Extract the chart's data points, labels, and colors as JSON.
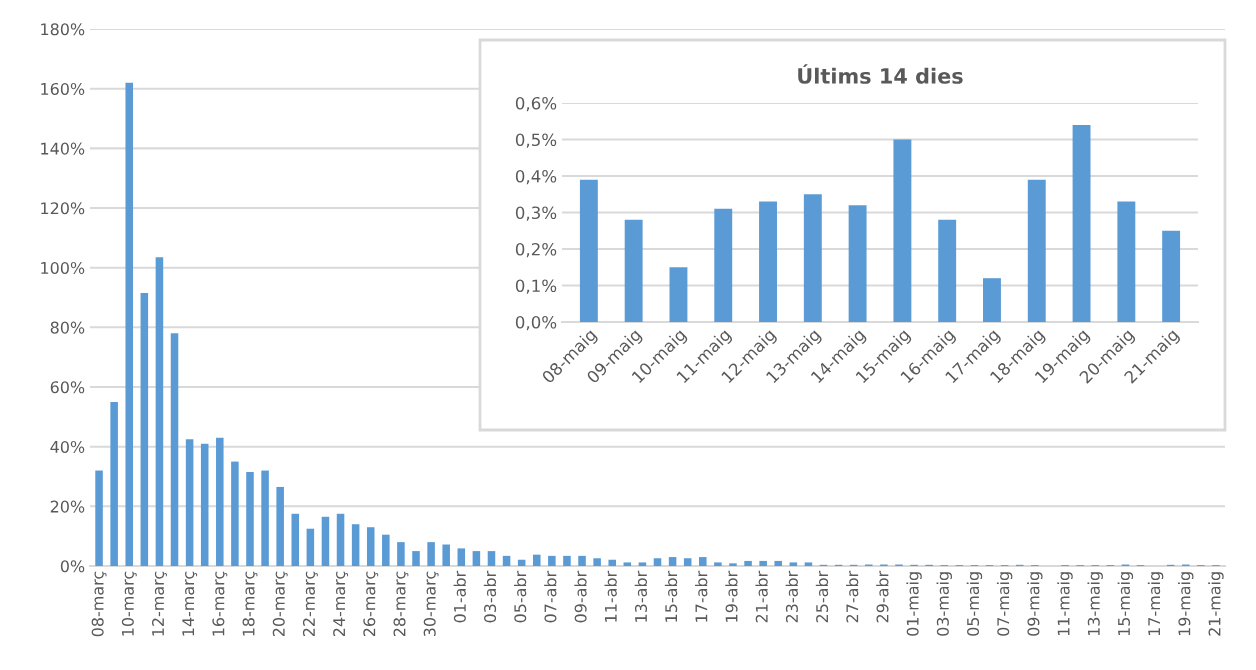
{
  "chart_data": [
    {
      "type": "bar",
      "color": "#5b9bd5",
      "grid": "y",
      "legend": false,
      "categories": [
        "08-març",
        null,
        "10-març",
        null,
        "12-març",
        null,
        "14-març",
        null,
        "16-març",
        null,
        "18-març",
        null,
        "20-març",
        null,
        "22-març",
        null,
        "24-març",
        null,
        "26-març",
        null,
        "28-març",
        null,
        "30-març",
        null,
        "01-abr",
        null,
        "03-abr",
        null,
        "05-abr",
        null,
        "07-abr",
        null,
        "09-abr",
        null,
        "11-abr",
        null,
        "13-abr",
        null,
        "15-abr",
        null,
        "17-abr",
        null,
        "19-abr",
        null,
        "21-abr",
        null,
        "23-abr",
        null,
        "25-abr",
        null,
        "27-abr",
        null,
        "29-abr",
        null,
        "01-maig",
        null,
        "03-maig",
        null,
        "05-maig",
        null,
        "07-maig",
        null,
        "09-maig",
        null,
        "11-maig",
        null,
        "13-maig",
        null,
        "15-maig",
        null,
        "17-maig",
        null,
        "19-maig",
        null,
        "21-maig"
      ],
      "values": [
        32,
        55,
        162,
        91.5,
        103.5,
        78,
        42.5,
        41,
        43,
        35,
        31.5,
        32,
        26.5,
        17.5,
        12.5,
        16.5,
        17.5,
        14,
        13,
        10.5,
        8,
        5,
        8,
        7.2,
        5.9,
        5,
        5,
        3.4,
        2.1,
        3.8,
        3.4,
        3.4,
        3.4,
        2.6,
        2.1,
        1.2,
        1.2,
        2.6,
        3,
        2.6,
        3,
        1.2,
        0.9,
        1.7,
        1.7,
        1.7,
        1.2,
        1.2,
        0.4,
        0.4,
        0.4,
        0.5,
        0.5,
        0.5,
        0.4,
        0.4,
        0.3,
        0.3,
        0.3,
        0.3,
        0.3,
        0.4,
        0.3,
        null,
        0.3,
        0.3,
        0.3,
        0.3,
        0.5,
        0.3,
        null,
        0.4,
        0.5,
        0.3,
        0.3
      ],
      "ylim": [
        0,
        180
      ],
      "yticks": [
        {
          "value": 0,
          "label": "0%"
        },
        {
          "value": 20,
          "label": "20%"
        },
        {
          "value": 40,
          "label": "40%"
        },
        {
          "value": 60,
          "label": "60%"
        },
        {
          "value": 80,
          "label": "80%"
        },
        {
          "value": 100,
          "label": "100%"
        },
        {
          "value": 120,
          "label": "120%"
        },
        {
          "value": 140,
          "label": "140%"
        },
        {
          "value": 160,
          "label": "160%"
        },
        {
          "value": 180,
          "label": "180%"
        }
      ]
    },
    {
      "type": "bar",
      "title": "Últims 14 dies",
      "color": "#5b9bd5",
      "grid": "y",
      "legend": false,
      "categories": [
        "08-maig",
        "09-maig",
        "10-maig",
        "11-maig",
        "12-maig",
        "13-maig",
        "14-maig",
        "15-maig",
        "16-maig",
        "17-maig",
        "18-maig",
        "19-maig",
        "20-maig",
        "21-maig"
      ],
      "values": [
        0.39,
        0.28,
        0.15,
        0.31,
        0.33,
        0.35,
        0.32,
        0.5,
        0.28,
        0.12,
        0.39,
        0.54,
        0.33,
        0.25
      ],
      "ylim": [
        0,
        0.6
      ],
      "yticks": [
        {
          "value": 0,
          "label": "0,0%"
        },
        {
          "value": 0.1,
          "label": "0,1%"
        },
        {
          "value": 0.2,
          "label": "0,2%"
        },
        {
          "value": 0.3,
          "label": "0,3%"
        },
        {
          "value": 0.4,
          "label": "0,4%"
        },
        {
          "value": 0.5,
          "label": "0,5%"
        },
        {
          "value": 0.6,
          "label": "0,6%"
        }
      ]
    }
  ]
}
